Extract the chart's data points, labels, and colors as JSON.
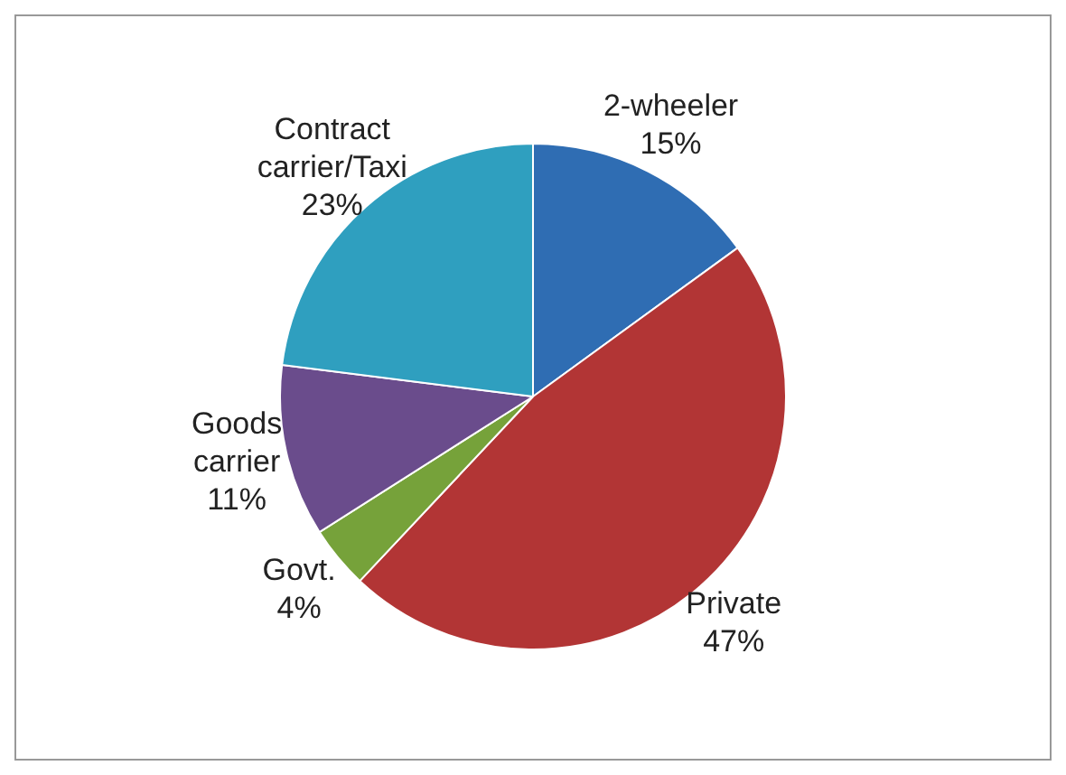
{
  "chart_data": {
    "type": "pie",
    "categories": [
      "2-wheeler",
      "Private",
      "Govt.",
      "Goods carrier",
      "Contract carrier/Taxi"
    ],
    "values": [
      15,
      47,
      4,
      11,
      23
    ],
    "value_labels": [
      "15%",
      "47%",
      "4%",
      "11%",
      "23%"
    ],
    "colors": [
      "#2f6db3",
      "#b23535",
      "#76a23a",
      "#6a4c8c",
      "#2f9fbf"
    ],
    "legend": false
  }
}
